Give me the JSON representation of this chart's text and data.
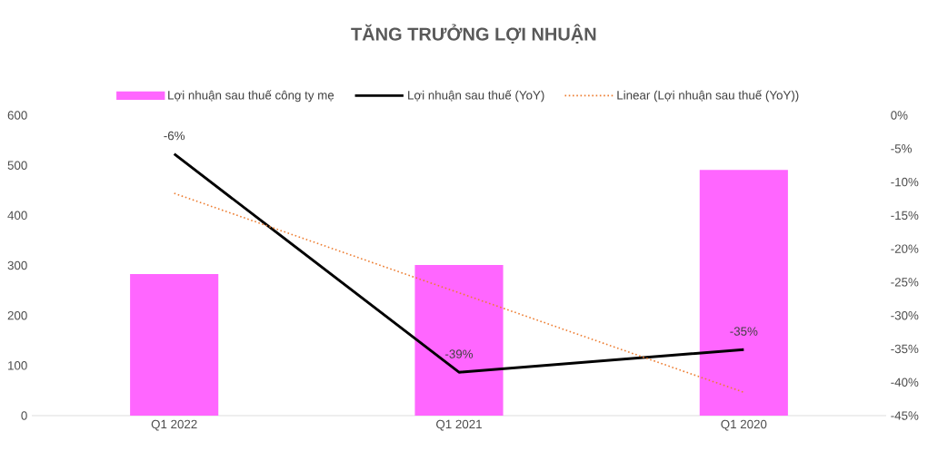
{
  "chart_data": {
    "type": "bar",
    "title": "TĂNG TRƯỞNG LỢI NHUẬN",
    "categories": [
      "Q1 2022",
      "Q1 2021",
      "Q1 2020"
    ],
    "series": [
      {
        "name": "Lợi nhuận sau thuế công ty mẹ",
        "color": "#ff66ff",
        "values": [
          283,
          301,
          491
        ]
      },
      {
        "name": "Lợi nhuận sau thuế (YoY)",
        "type": "line",
        "axis": "y2",
        "color": "#000000",
        "line_style": "solid",
        "values": [
          -5.8,
          -38.5,
          -35.1
        ],
        "value_labels": [
          "-6%",
          "-39%",
          "-35%"
        ]
      },
      {
        "name": "Linear (Lợi nhuận sau thuế (YoY))",
        "type": "line",
        "axis": "y2",
        "color": "#ed7d31",
        "line_style": "dotted",
        "values": [
          -11.7,
          -26.6,
          -41.5
        ]
      }
    ],
    "ylim": [
      0,
      600
    ],
    "yticks": [
      0,
      100,
      200,
      300,
      400,
      500,
      600
    ],
    "y2lim": [
      -45,
      0
    ],
    "y2ticks": [
      {
        "value": 0,
        "label": "0%"
      },
      {
        "value": -5,
        "label": "-5%"
      },
      {
        "value": -10,
        "label": "-10%"
      },
      {
        "value": -15,
        "label": "-15%"
      },
      {
        "value": -20,
        "label": "-20%"
      },
      {
        "value": -25,
        "label": "-25%"
      },
      {
        "value": -30,
        "label": "-30%"
      },
      {
        "value": -35,
        "label": "-35%"
      },
      {
        "value": -40,
        "label": "-40%"
      },
      {
        "value": -45,
        "label": "-45%"
      }
    ],
    "legend": "top"
  }
}
